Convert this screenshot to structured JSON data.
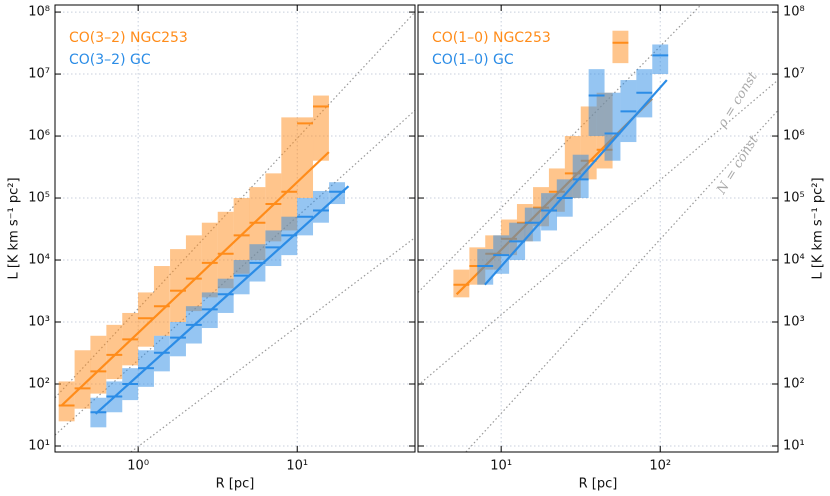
{
  "chart_data": [
    {
      "type": "line",
      "xlabel": "R [pc]",
      "ylabel": "L [K km s⁻¹ pc²]",
      "log_x": true,
      "log_y": true,
      "grid": true,
      "xlim": [
        0.3,
        55
      ],
      "ylim": [
        8,
        130000000
      ],
      "xticks": [
        {
          "value": 1,
          "label": "10⁰"
        },
        {
          "value": 10,
          "label": "10¹"
        }
      ],
      "yticks": [
        {
          "value": 10,
          "label": "10¹"
        },
        {
          "value": 100,
          "label": "10²"
        },
        {
          "value": 1000,
          "label": "10³"
        },
        {
          "value": 10000,
          "label": "10⁴"
        },
        {
          "value": 100000,
          "label": "10⁵"
        },
        {
          "value": 1000000,
          "label": "10⁶"
        },
        {
          "value": 10000000,
          "label": "10⁷"
        },
        {
          "value": 100000000,
          "label": "10⁸"
        }
      ],
      "ytick_side": "left",
      "series": [
        {
          "name": "CO(3–2) NGC253",
          "color": "#ff8c1a",
          "x": [
            0.355,
            0.447,
            0.562,
            0.708,
            0.891,
            1.12,
            1.41,
            1.78,
            2.24,
            2.82,
            3.55,
            4.47,
            5.62,
            7.08,
            8.91,
            11.2,
            14.1
          ],
          "values": [
            45,
            85,
            160,
            295,
            525,
            1150,
            1800,
            3200,
            5000,
            9000,
            12600,
            25000,
            40000,
            80000,
            126000,
            1600000,
            3000000
          ],
          "lower": [
            25,
            40,
            70,
            120,
            200,
            400,
            600,
            1000,
            1500,
            2500,
            3500,
            6000,
            10000,
            20000,
            30000,
            100000,
            400000
          ],
          "upper": [
            110,
            350,
            600,
            900,
            1400,
            3000,
            8000,
            15000,
            25000,
            40000,
            60000,
            100000,
            150000,
            250000,
            2000000,
            2000000,
            4500000
          ],
          "fit_x": [
            0.33,
            15.8
          ],
          "fit_y": [
            45,
            550000
          ]
        },
        {
          "name": "CO(3–2) GC",
          "color": "#2b8ce6",
          "x": [
            0.562,
            0.708,
            0.891,
            1.12,
            1.41,
            1.78,
            2.24,
            2.82,
            3.55,
            4.47,
            5.62,
            7.08,
            8.91,
            11.2,
            14.1,
            17.8
          ],
          "values": [
            35,
            63,
            100,
            180,
            320,
            560,
            900,
            1600,
            2800,
            5600,
            9000,
            16000,
            25000,
            50000,
            63000,
            126000
          ],
          "lower": [
            20,
            35,
            55,
            90,
            160,
            280,
            450,
            800,
            1400,
            2800,
            4500,
            8000,
            12000,
            25000,
            40000,
            80000
          ],
          "upper": [
            60,
            110,
            180,
            350,
            600,
            1000,
            1800,
            3000,
            5000,
            10000,
            18000,
            30000,
            50000,
            100000,
            130000,
            180000
          ],
          "fit_x": [
            0.54,
            21
          ],
          "fit_y": [
            33,
            155000
          ]
        }
      ],
      "reference_lines": [
        {
          "x": [
            0.3,
            55
          ],
          "y": [
            60,
            100000000
          ]
        },
        {
          "x": [
            0.3,
            55
          ],
          "y": [
            15,
            2600000
          ]
        },
        {
          "x": [
            0.9,
            55
          ],
          "y": [
            8,
            23000
          ]
        }
      ]
    },
    {
      "type": "line",
      "xlabel": "R [pc]",
      "ylabel": "L [K km s⁻¹ pc²]",
      "log_x": true,
      "log_y": true,
      "grid": true,
      "xlim": [
        3,
        550
      ],
      "ylim": [
        8,
        130000000
      ],
      "xticks": [
        {
          "value": 10,
          "label": "10¹"
        },
        {
          "value": 100,
          "label": "10²"
        }
      ],
      "yticks": [
        {
          "value": 10,
          "label": "10¹"
        },
        {
          "value": 100,
          "label": "10²"
        },
        {
          "value": 1000,
          "label": "10³"
        },
        {
          "value": 10000,
          "label": "10⁴"
        },
        {
          "value": 100000,
          "label": "10⁵"
        },
        {
          "value": 1000000,
          "label": "10⁶"
        },
        {
          "value": 10000000,
          "label": "10⁷"
        },
        {
          "value": 100000000,
          "label": "10⁸"
        }
      ],
      "ytick_side": "right",
      "series": [
        {
          "name": "CO(1–0) NGC253",
          "color": "#ff8c1a",
          "x": [
            5.62,
            7.08,
            8.91,
            11.2,
            14.1,
            17.8,
            22.4,
            28.2,
            35.5,
            44.7,
            56.2
          ],
          "values": [
            4000,
            8000,
            12600,
            22000,
            40000,
            70000,
            126000,
            250000,
            400000,
            600000,
            32000000
          ],
          "lower": [
            2500,
            4000,
            7000,
            12000,
            20000,
            35000,
            60000,
            100000,
            200000,
            300000,
            15000000
          ],
          "upper": [
            7000,
            16000,
            25000,
            45000,
            80000,
            150000,
            300000,
            1000000,
            3000000,
            5000000,
            50000000
          ],
          "fit_x": [
            5.25,
            89
          ],
          "fit_y": [
            2800,
            4000000
          ]
        },
        {
          "name": "CO(1–0) GC",
          "color": "#2b8ce6",
          "x": [
            7.94,
            10,
            12.6,
            15.8,
            20,
            25.1,
            31.6,
            39.8,
            50.1,
            63.1,
            79.4,
            100
          ],
          "values": [
            8000,
            12000,
            20000,
            40000,
            63000,
            100000,
            200000,
            4500000,
            1100000,
            2500000,
            5000000,
            20000000
          ],
          "lower": [
            4000,
            6000,
            10000,
            20000,
            30000,
            50000,
            100000,
            1000000,
            400000,
            800000,
            2000000,
            10000000
          ],
          "upper": [
            15000,
            25000,
            40000,
            70000,
            120000,
            200000,
            500000,
            12000000,
            5000000,
            8000000,
            12000000,
            30000000
          ],
          "fit_x": [
            7.9,
            110
          ],
          "fit_y": [
            4000,
            8000000
          ]
        }
      ],
      "reference_lines": [
        {
          "x": [
            3,
            180
          ],
          "y": [
            3000,
            130000000
          ]
        },
        {
          "x": [
            3,
            550
          ],
          "y": [
            95,
            8000000
          ]
        },
        {
          "x": [
            6,
            550
          ],
          "y": [
            8,
            2600000
          ]
        }
      ],
      "annotations": [
        "ρ = const",
        "N = const"
      ]
    }
  ]
}
